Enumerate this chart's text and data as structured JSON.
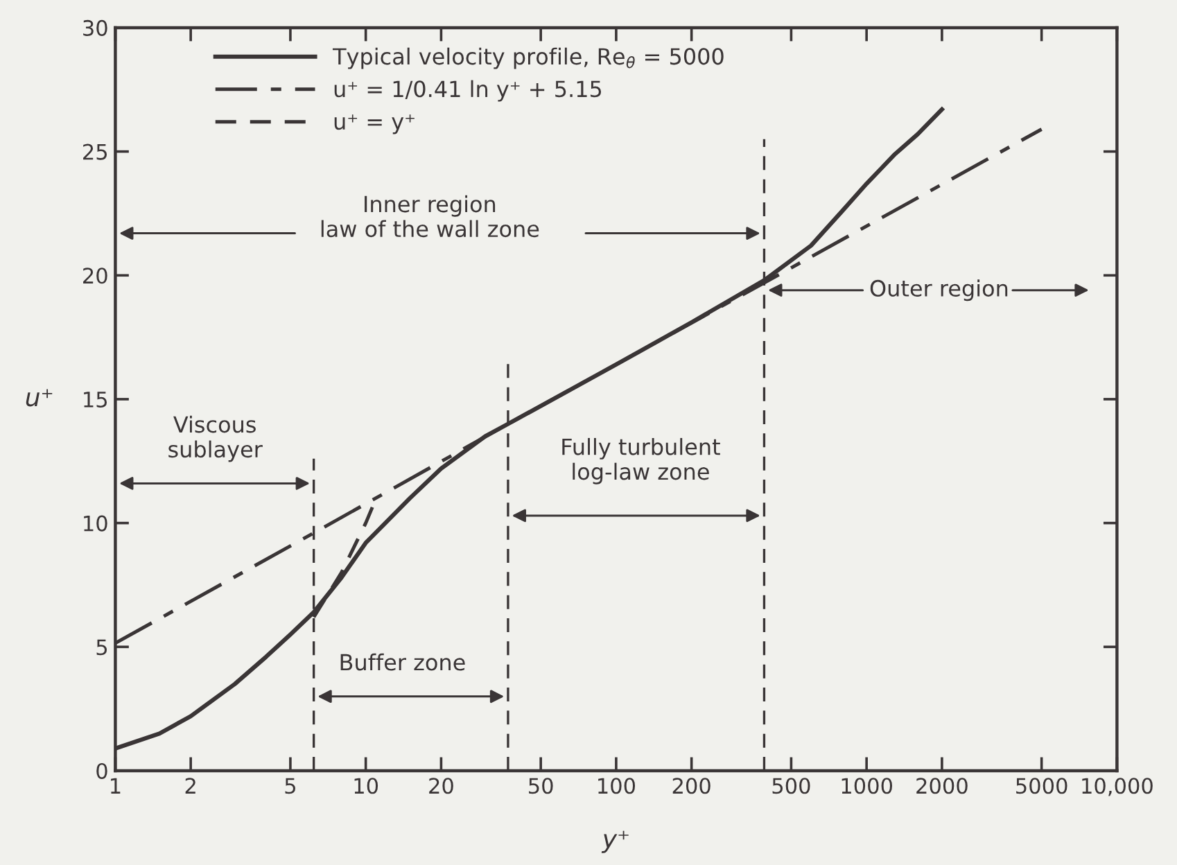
{
  "chart_data": {
    "type": "line",
    "xlabel": "y⁺",
    "ylabel": "u⁺",
    "log": "x",
    "xlim": [
      1,
      10000
    ],
    "ylim": [
      0,
      30
    ],
    "xticks": [
      1,
      2,
      5,
      10,
      20,
      50,
      100,
      200,
      500,
      1000,
      2000,
      5000,
      {
        "value": 10000,
        "label": "10,000"
      }
    ],
    "yticks": [
      0,
      5,
      10,
      15,
      20,
      25,
      30
    ],
    "grid": false,
    "legend": "top left",
    "series": [
      {
        "name": "Typical velocity profile, Re$_{θ}$ = 5000",
        "color": "#3a3536",
        "line_style": "solid",
        "x": [
          1,
          1.5,
          2,
          3,
          4,
          5,
          6.2,
          8,
          10,
          15,
          20,
          30,
          37,
          100,
          200,
          390,
          600,
          800,
          1000,
          1300,
          1600,
          2000
        ],
        "values": [
          0.9,
          1.5,
          2.2,
          3.5,
          4.6,
          5.5,
          6.4,
          7.8,
          9.2,
          11.0,
          12.2,
          13.5,
          14.0,
          16.4,
          18.1,
          19.8,
          21.2,
          22.6,
          23.7,
          24.9,
          25.7,
          26.7
        ]
      },
      {
        "name": "u⁺ = 1/0.41 ln y⁺ + 5.15",
        "color": "#3a3536",
        "line_style": "dashdot",
        "x": [
          1,
          6.2,
          37,
          390,
          5000
        ],
        "values": [
          5.15,
          9.6,
          14.0,
          19.7,
          25.9
        ]
      },
      {
        "name": "u⁺ = y⁺",
        "color": "#3a3536",
        "line_style": "dashed",
        "x": [
          6.2,
          8,
          10,
          11
        ],
        "values": [
          6.2,
          8,
          10,
          11
        ]
      }
    ],
    "ref_lines": [
      {
        "axis": "x",
        "value": 6.2,
        "color": "#3a3536",
        "line_style": "dashed"
      },
      {
        "axis": "x",
        "value": 37,
        "color": "#3a3536",
        "line_style": "dashed"
      },
      {
        "axis": "x",
        "value": 390,
        "color": "#3a3536",
        "line_style": "dashed"
      }
    ],
    "annotations": [
      "Inner region\nlaw of the wall zone",
      "Viscous\nsublayer",
      "Buffer zone",
      "Fully turbulent\nlog-law zone",
      "Outer region"
    ]
  }
}
